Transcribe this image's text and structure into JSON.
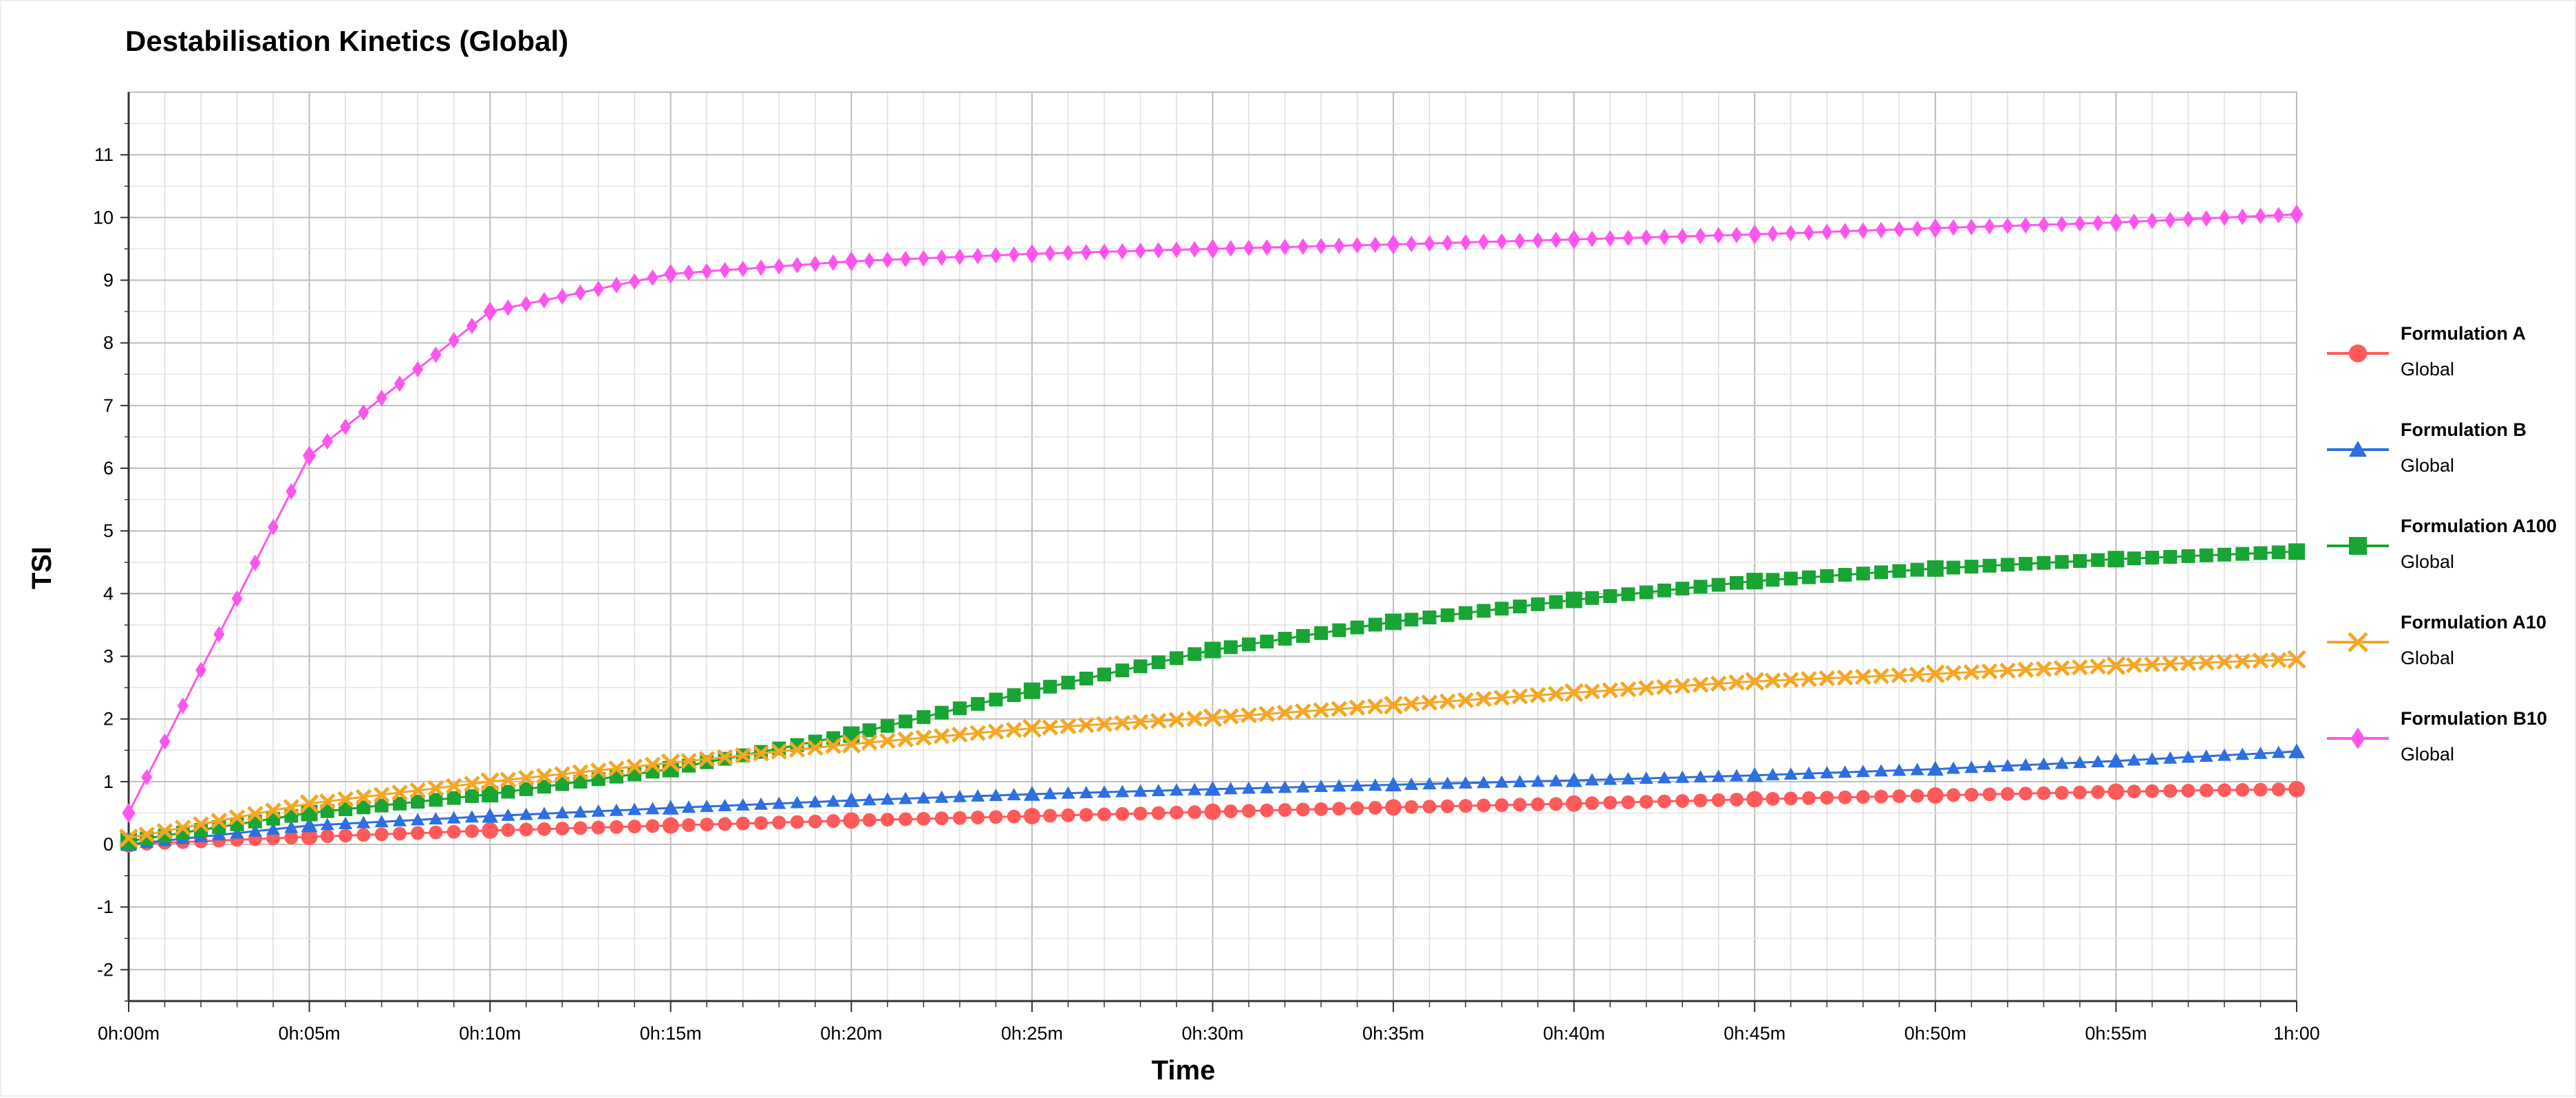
{
  "chart_data": {
    "type": "line",
    "title": "Destabilisation Kinetics (Global)",
    "xlabel": "Time",
    "ylabel": "TSI",
    "xlim": [
      0,
      60
    ],
    "ylim": [
      -2.5,
      12
    ],
    "y_ticks": [
      -2,
      -1,
      0,
      1,
      2,
      3,
      4,
      5,
      6,
      7,
      8,
      9,
      10,
      11
    ],
    "y_tick_labels": [
      "-2",
      "-1",
      "0",
      "1",
      "2",
      "3",
      "4",
      "5",
      "6",
      "7",
      "8",
      "9",
      "10",
      "11"
    ],
    "x_ticks": [
      0,
      5,
      10,
      15,
      20,
      25,
      30,
      35,
      40,
      45,
      50,
      55,
      60
    ],
    "x_tick_labels": [
      "0h:00m",
      "0h:05m",
      "0h:10m",
      "0h:15m",
      "0h:20m",
      "0h:25m",
      "0h:30m",
      "0h:35m",
      "0h:40m",
      "0h:45m",
      "0h:50m",
      "0h:55m",
      "1h:00"
    ],
    "grid": true,
    "legend_position": "right",
    "x": [
      0,
      5,
      10,
      15,
      20,
      25,
      30,
      35,
      40,
      45,
      50,
      55,
      60
    ],
    "series": [
      {
        "name": "Formulation A",
        "subtitle": "Global",
        "color": "#ff5a5a",
        "marker": "circle",
        "values": [
          0.0,
          0.12,
          0.22,
          0.3,
          0.38,
          0.45,
          0.52,
          0.59,
          0.65,
          0.72,
          0.78,
          0.84,
          0.88
        ]
      },
      {
        "name": "Formulation B",
        "subtitle": "Global",
        "color": "#2e6fe0",
        "marker": "triangle",
        "values": [
          0.0,
          0.3,
          0.45,
          0.58,
          0.7,
          0.8,
          0.88,
          0.95,
          1.02,
          1.1,
          1.2,
          1.33,
          1.48
        ]
      },
      {
        "name": "Formulation A100",
        "subtitle": "Global",
        "color": "#18a533",
        "marker": "square",
        "values": [
          0.05,
          0.5,
          0.8,
          1.2,
          1.75,
          2.45,
          3.1,
          3.55,
          3.9,
          4.2,
          4.4,
          4.55,
          4.67
        ]
      },
      {
        "name": "Formulation A10",
        "subtitle": "Global",
        "color": "#f5a623",
        "marker": "x",
        "values": [
          0.1,
          0.65,
          1.0,
          1.3,
          1.6,
          1.85,
          2.02,
          2.22,
          2.42,
          2.6,
          2.72,
          2.85,
          2.95
        ]
      },
      {
        "name": "Formulation B10",
        "subtitle": "Global",
        "color": "#ff55ee",
        "marker": "diamond",
        "values": [
          0.5,
          6.2,
          8.5,
          9.1,
          9.3,
          9.42,
          9.5,
          9.57,
          9.65,
          9.73,
          9.83,
          9.92,
          10.05
        ]
      }
    ]
  }
}
